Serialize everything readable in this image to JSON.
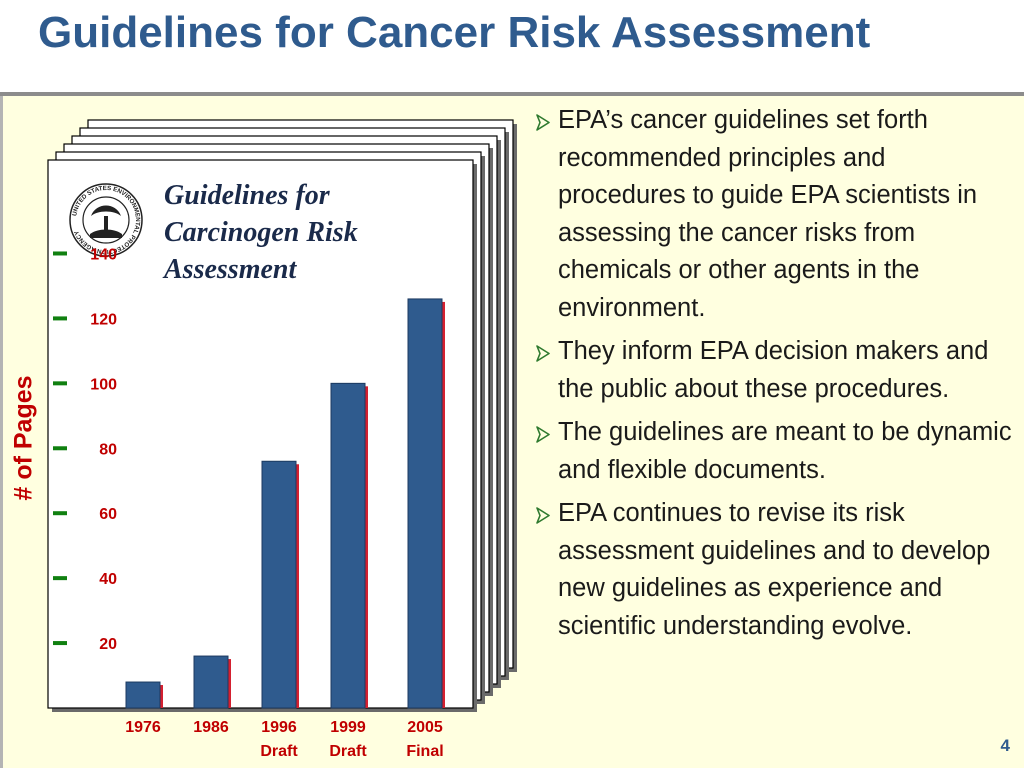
{
  "slide": {
    "title": "Guidelines for Cancer Risk Assessment",
    "page_number": "4"
  },
  "document_cover": {
    "title_lines": [
      "Guidelines for",
      "Carcinogen Risk",
      "Assessment"
    ],
    "seal": "UNITED STATES ENVIRONMENTAL PROTECTION AGENCY"
  },
  "bullets": [
    "EPA’s cancer guidelines set forth recommended principles and procedures to guide EPA scientists in assessing the cancer risks from chemicals or other agents in the environment.",
    "They inform EPA decision makers and the public about these procedures.",
    "The guidelines are meant to be dynamic and flexible documents.",
    "EPA continues to revise its risk assessment guidelines and to develop new guidelines as experience and scientific understanding evolve."
  ],
  "colors": {
    "title": "#2f5b8e",
    "background": "#ffffe0",
    "bar_fill": "#2f5b8e",
    "bar_shadow": "#d42030",
    "axis_text": "#c00000",
    "tick": "#108010",
    "bullet_arrow": "#2f7a2f"
  },
  "chart_data": {
    "type": "bar",
    "ylabel": "# of Pages",
    "categories": [
      [
        "1976"
      ],
      [
        "1986"
      ],
      [
        "1996",
        "Draft"
      ],
      [
        "1999",
        "Draft"
      ],
      [
        "2005",
        "Final"
      ]
    ],
    "values": [
      8,
      16,
      76,
      100,
      126
    ],
    "yticks": [
      20,
      40,
      60,
      80,
      100,
      120,
      140
    ],
    "ylim": [
      0,
      146
    ],
    "grid": false
  }
}
